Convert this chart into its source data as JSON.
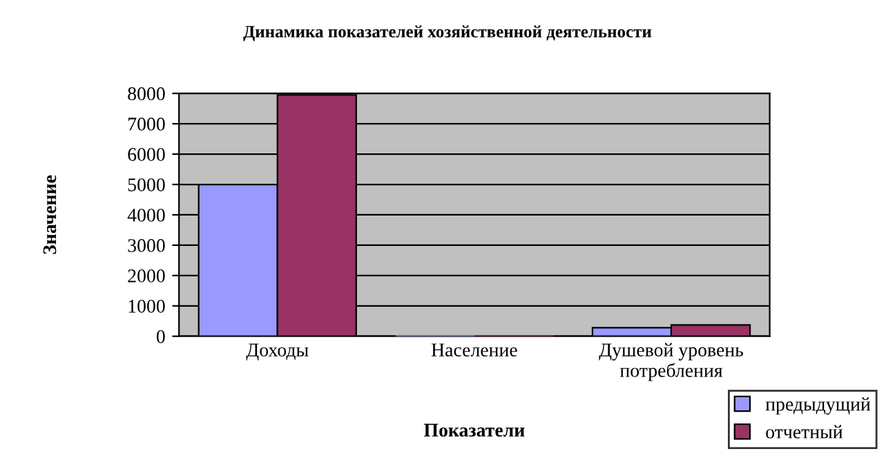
{
  "chart_data": {
    "type": "bar",
    "title": "Динамика показателей хозяйственной деятельности",
    "xlabel": "Показатели",
    "ylabel": "Значение",
    "categories": [
      "Доходы",
      "Население",
      "Душевой уровень\nпотребления"
    ],
    "series": [
      {
        "name": "предыдущий",
        "color": "#9999ff",
        "values": [
          5000,
          0,
          280
        ]
      },
      {
        "name": "отчетный",
        "color": "#993366",
        "values": [
          7950,
          0,
          370
        ]
      }
    ],
    "ylim": [
      0,
      8000
    ],
    "yticks": [
      0,
      1000,
      2000,
      3000,
      4000,
      5000,
      6000,
      7000,
      8000
    ],
    "grid": "y",
    "legend": "bottom right"
  }
}
